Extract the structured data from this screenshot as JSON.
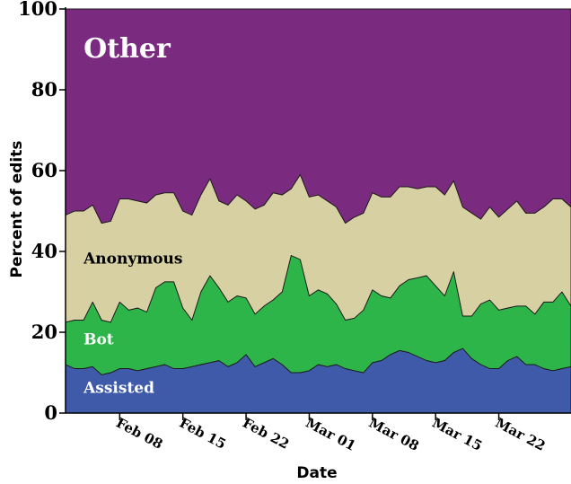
{
  "chart_data": {
    "type": "area",
    "stacked": true,
    "xlabel": "Date",
    "ylabel": "Percent of edits",
    "ylim": [
      0,
      100
    ],
    "yticks": [
      0,
      20,
      40,
      60,
      80,
      100
    ],
    "xlim": [
      "2009-02-02",
      "2009-03-30"
    ],
    "xticks": [
      {
        "date": "2009-02-08",
        "label": "Feb 08"
      },
      {
        "date": "2009-02-15",
        "label": "Feb 15"
      },
      {
        "date": "2009-02-22",
        "label": "Feb 22"
      },
      {
        "date": "2009-03-01",
        "label": "Mar 01"
      },
      {
        "date": "2009-03-08",
        "label": "Mar 08"
      },
      {
        "date": "2009-03-15",
        "label": "Mar 15"
      },
      {
        "date": "2009-03-22",
        "label": "Mar 22"
      }
    ],
    "x": [
      "2009-02-02",
      "2009-02-03",
      "2009-02-04",
      "2009-02-05",
      "2009-02-06",
      "2009-02-07",
      "2009-02-08",
      "2009-02-09",
      "2009-02-10",
      "2009-02-11",
      "2009-02-12",
      "2009-02-13",
      "2009-02-14",
      "2009-02-15",
      "2009-02-16",
      "2009-02-17",
      "2009-02-18",
      "2009-02-19",
      "2009-02-20",
      "2009-02-21",
      "2009-02-22",
      "2009-02-23",
      "2009-02-24",
      "2009-02-25",
      "2009-02-26",
      "2009-02-27",
      "2009-02-28",
      "2009-03-01",
      "2009-03-02",
      "2009-03-03",
      "2009-03-04",
      "2009-03-05",
      "2009-03-06",
      "2009-03-07",
      "2009-03-08",
      "2009-03-09",
      "2009-03-10",
      "2009-03-11",
      "2009-03-12",
      "2009-03-13",
      "2009-03-14",
      "2009-03-15",
      "2009-03-16",
      "2009-03-17",
      "2009-03-18",
      "2009-03-19",
      "2009-03-20",
      "2009-03-21",
      "2009-03-22",
      "2009-03-23",
      "2009-03-24",
      "2009-03-25",
      "2009-03-26",
      "2009-03-27",
      "2009-03-28",
      "2009-03-29",
      "2009-03-30"
    ],
    "series": [
      {
        "name": "Assisted",
        "color": "#3f5aa8",
        "values": [
          12,
          11,
          11,
          11.5,
          9.5,
          10,
          11,
          11,
          10.5,
          11,
          11.5,
          12,
          11,
          11,
          11.5,
          12,
          12.5,
          13,
          11.5,
          12.5,
          14.5,
          11.5,
          12.5,
          13.5,
          12,
          10,
          10,
          10.5,
          12,
          11.5,
          12,
          11,
          10.5,
          10,
          12.5,
          13,
          14.5,
          15.5,
          15,
          14,
          13,
          12.5,
          13,
          15,
          16,
          13.5,
          12,
          11,
          11,
          13,
          14,
          12,
          12,
          11,
          10.5,
          11,
          11.5
        ]
      },
      {
        "name": "Bot",
        "color": "#2eb54a",
        "values": [
          10.5,
          12,
          12,
          16,
          13.5,
          12.5,
          16.5,
          14.5,
          15.5,
          14,
          19.5,
          20.5,
          21.5,
          15,
          11.5,
          18,
          21.5,
          18,
          16,
          16.5,
          14,
          13,
          14,
          14.5,
          18,
          29,
          28,
          18.5,
          18.5,
          18,
          15,
          12,
          13,
          15.5,
          18,
          16,
          14,
          16,
          18,
          19.5,
          21,
          19,
          16,
          20,
          8,
          10.5,
          15,
          17,
          14.5,
          13,
          12.5,
          14.5,
          12.5,
          16.5,
          17,
          19,
          15
        ]
      },
      {
        "name": "Anonymous",
        "color": "#d6d0a2",
        "values": [
          26.5,
          27,
          27,
          24,
          24,
          25,
          25.5,
          27.5,
          26.5,
          27,
          23,
          22,
          22,
          24,
          26,
          24,
          24,
          21.5,
          24,
          25,
          24,
          26,
          25,
          26.5,
          24,
          16.5,
          21,
          24.5,
          23.5,
          23,
          24,
          24,
          25,
          24,
          24,
          24.5,
          25,
          24.5,
          23,
          22,
          22,
          24.5,
          25,
          22.5,
          27,
          25.5,
          21,
          23,
          23,
          24.5,
          26,
          23,
          25,
          23.5,
          25.5,
          23,
          24.5
        ]
      },
      {
        "name": "Other",
        "color": "#7b2b7f",
        "values": [
          51,
          50,
          50,
          48.5,
          53,
          52.5,
          47,
          47,
          47.5,
          48,
          46,
          45.5,
          45.5,
          50,
          51,
          46,
          42,
          47.5,
          48.5,
          46,
          47.5,
          49.5,
          48.5,
          45.5,
          46,
          44.5,
          41,
          46.5,
          46,
          47.5,
          49,
          53,
          51.5,
          50.5,
          45.5,
          46.5,
          46.5,
          44,
          44,
          44.5,
          44,
          44,
          46,
          42.5,
          49,
          50.5,
          52,
          49,
          51.5,
          49.5,
          47.5,
          50.5,
          50.5,
          49,
          47,
          47,
          49
        ]
      }
    ],
    "annotations": [
      {
        "series": "Other",
        "text": "Other",
        "date": "2009-02-04",
        "y": 88,
        "color": "#ffffff",
        "size": "large"
      },
      {
        "series": "Anonymous",
        "text": "Anonymous",
        "date": "2009-02-04",
        "y": 37,
        "color": "#000000",
        "size": "small"
      },
      {
        "series": "Bot",
        "text": "Bot",
        "date": "2009-02-04",
        "y": 17,
        "color": "#ffffff",
        "size": "small"
      },
      {
        "series": "Assisted",
        "text": "Assisted",
        "date": "2009-02-04",
        "y": 5,
        "color": "#ffffff",
        "size": "small"
      }
    ],
    "legend": "none",
    "grid": false
  }
}
